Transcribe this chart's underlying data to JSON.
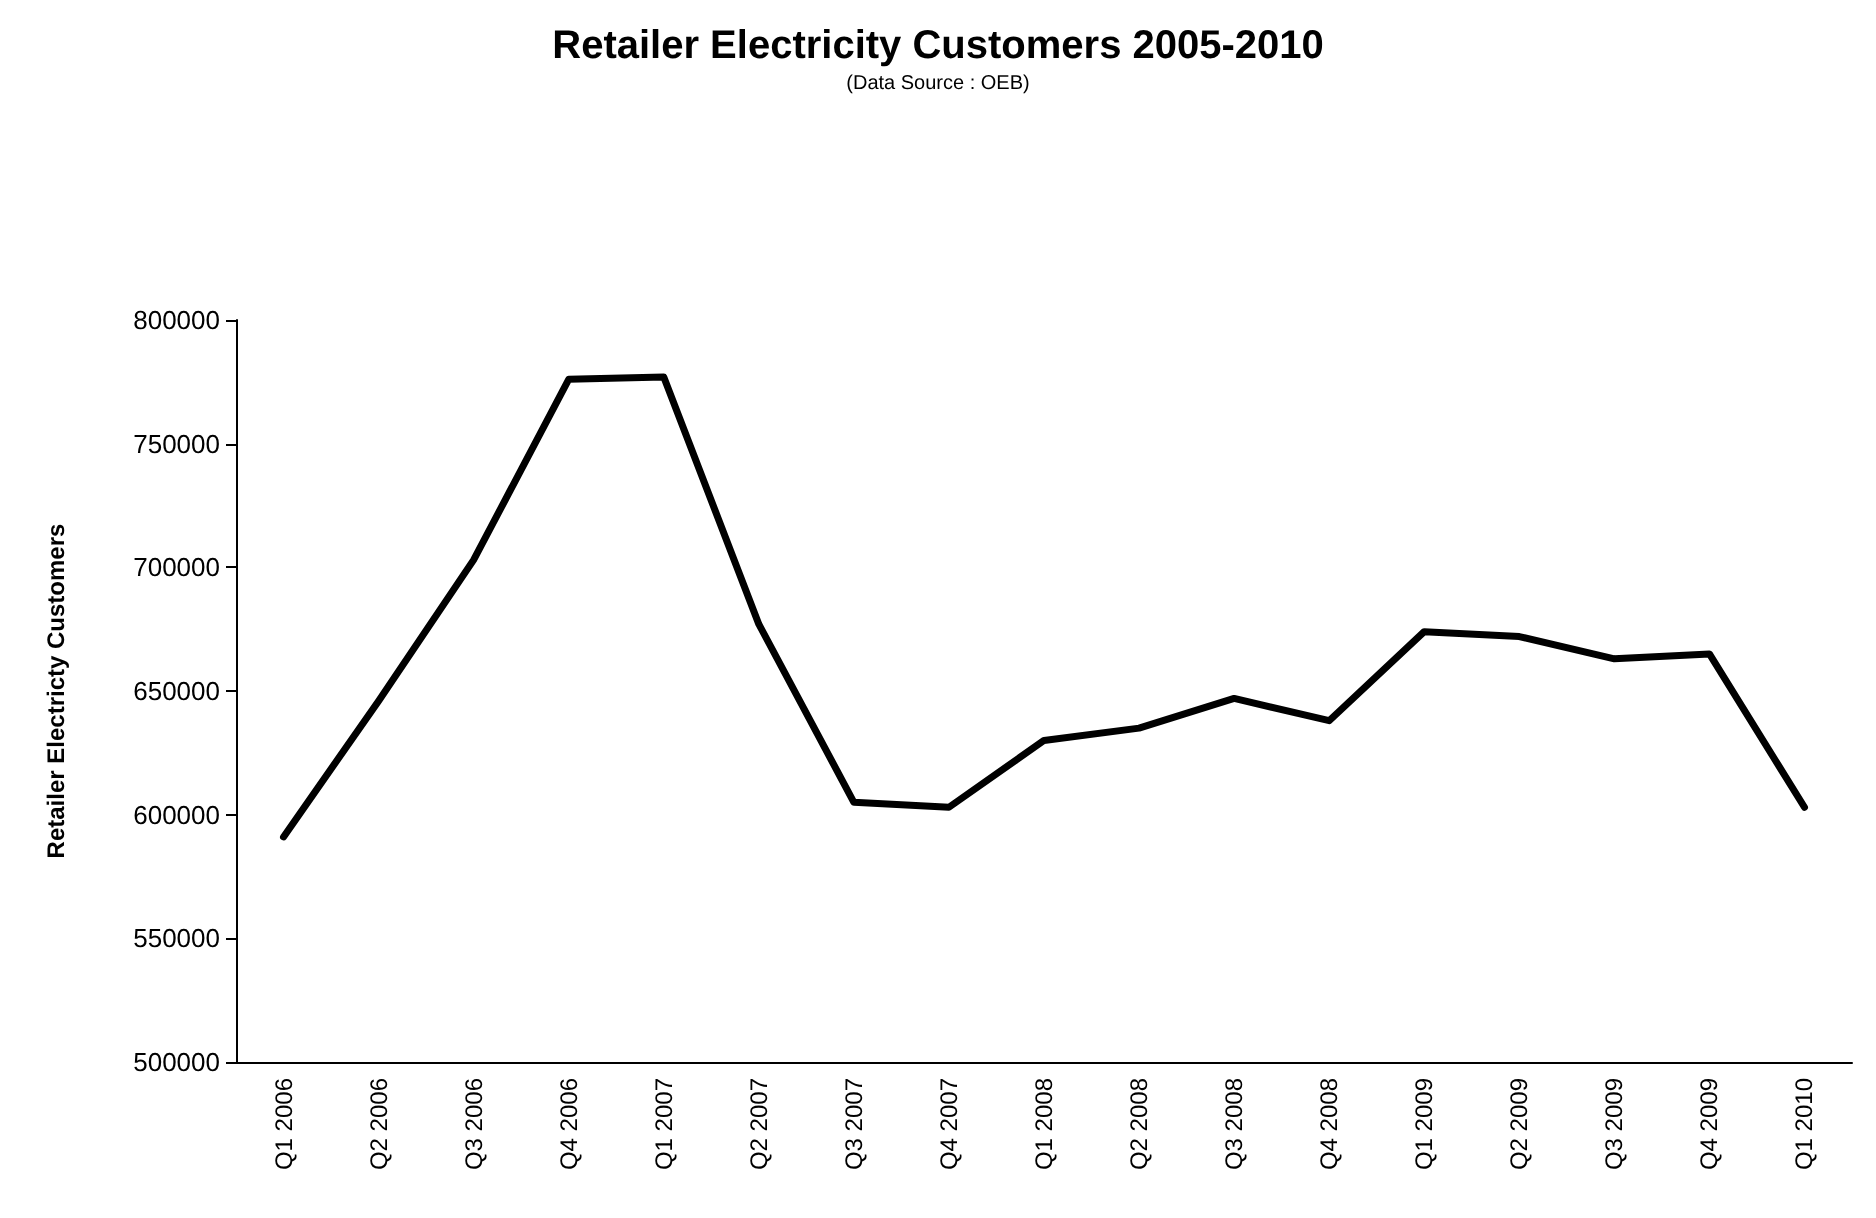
{
  "chart_data": {
    "type": "line",
    "title": "Retailer Electricity Customers 2005-2010",
    "subtitle": "(Data Source : OEB)",
    "ylabel": "Retailer Electricty Customers",
    "categories": [
      "Q1 2006",
      "Q2 2006",
      "Q3 2006",
      "Q4 2006",
      "Q1 2007",
      "Q2 2007",
      "Q3 2007",
      "Q4 2007",
      "Q1 2008",
      "Q2 2008",
      "Q3 2008",
      "Q4 2008",
      "Q1 2009",
      "Q2 2009",
      "Q3 2009",
      "Q4 2009",
      "Q1 2010"
    ],
    "series": [
      {
        "color": "#000000",
        "values": [
          591000,
          646000,
          703000,
          776000,
          777000,
          677000,
          605000,
          603000,
          630000,
          635000,
          647000,
          638000,
          674000,
          672000,
          663000,
          665000,
          603000
        ]
      }
    ],
    "ylim": [
      500000,
      800000
    ],
    "yticks": [
      500000,
      550000,
      600000,
      650000,
      700000,
      750000,
      800000
    ],
    "grid": false,
    "marker": "none",
    "line_style": "solid"
  }
}
